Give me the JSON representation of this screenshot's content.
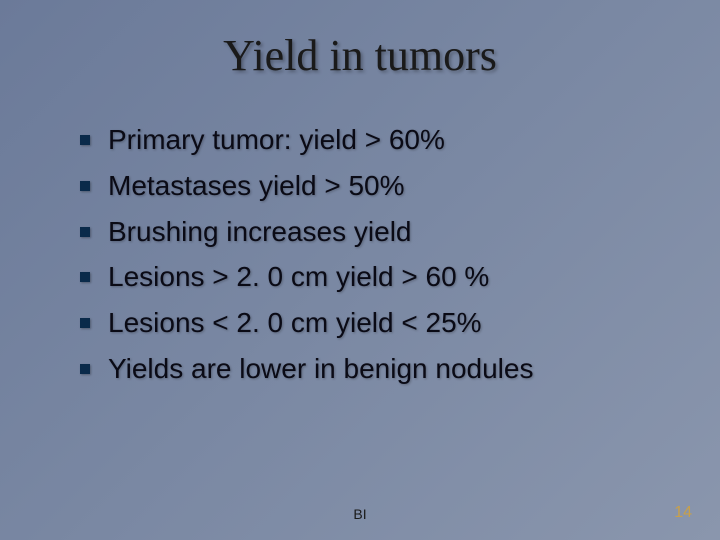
{
  "slide": {
    "title": "Yield in tumors",
    "bullets": [
      "Primary tumor: yield > 60%",
      "Metastases yield > 50%",
      "Brushing increases yield",
      "Lesions > 2. 0 cm yield > 60 %",
      "Lesions < 2. 0 cm yield < 25%",
      "Yields are lower in benign nodules"
    ],
    "footer_center": "BI",
    "page_number": "14"
  },
  "style": {
    "background_gradient_start": "#6b7a99",
    "background_gradient_mid": "#7a88a3",
    "background_gradient_end": "#8a96ad",
    "title_color": "#1a1a1a",
    "title_fontsize": 44,
    "title_font": "Times New Roman",
    "bullet_text_color": "#0a0a15",
    "bullet_text_fontsize": 28,
    "bullet_marker_color": "#0a2a4a",
    "bullet_marker_size": 10,
    "footer_center_color": "#1a1a1a",
    "page_number_color": "#c8a04a"
  }
}
